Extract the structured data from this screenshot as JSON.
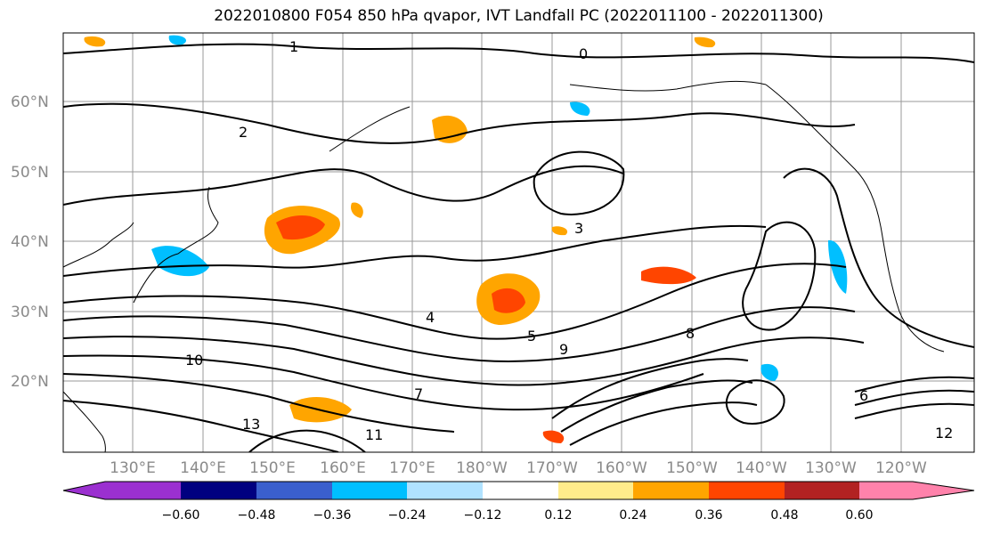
{
  "title": "2022010800 F054 850 hPa qvapor, IVT Landfall PC (2022011100 - 2022011300)",
  "map": {
    "lat_labels": [
      "20°N",
      "30°N",
      "40°N",
      "50°N",
      "60°N"
    ],
    "lon_labels": [
      "130°E",
      "140°E",
      "150°E",
      "160°E",
      "170°E",
      "180°W",
      "170°W",
      "160°W",
      "150°W",
      "140°W",
      "130°W",
      "120°W"
    ],
    "contour_labels": [
      "0",
      "1",
      "2",
      "3",
      "4",
      "5",
      "6",
      "7",
      "8",
      "9",
      "10",
      "11",
      "12",
      "13"
    ]
  },
  "colorbar": {
    "ticks": [
      "−0.60",
      "−0.48",
      "−0.36",
      "−0.24",
      "−0.12",
      "0.12",
      "0.24",
      "0.36",
      "0.48",
      "0.60"
    ],
    "colors": [
      "#9b30d0",
      "#000080",
      "#3a5fcd",
      "#00bfff",
      "#b0e2ff",
      "#ffffff",
      "#ffec8b",
      "#ffa500",
      "#ff4500",
      "#b22222",
      "#ff82ab"
    ]
  }
}
